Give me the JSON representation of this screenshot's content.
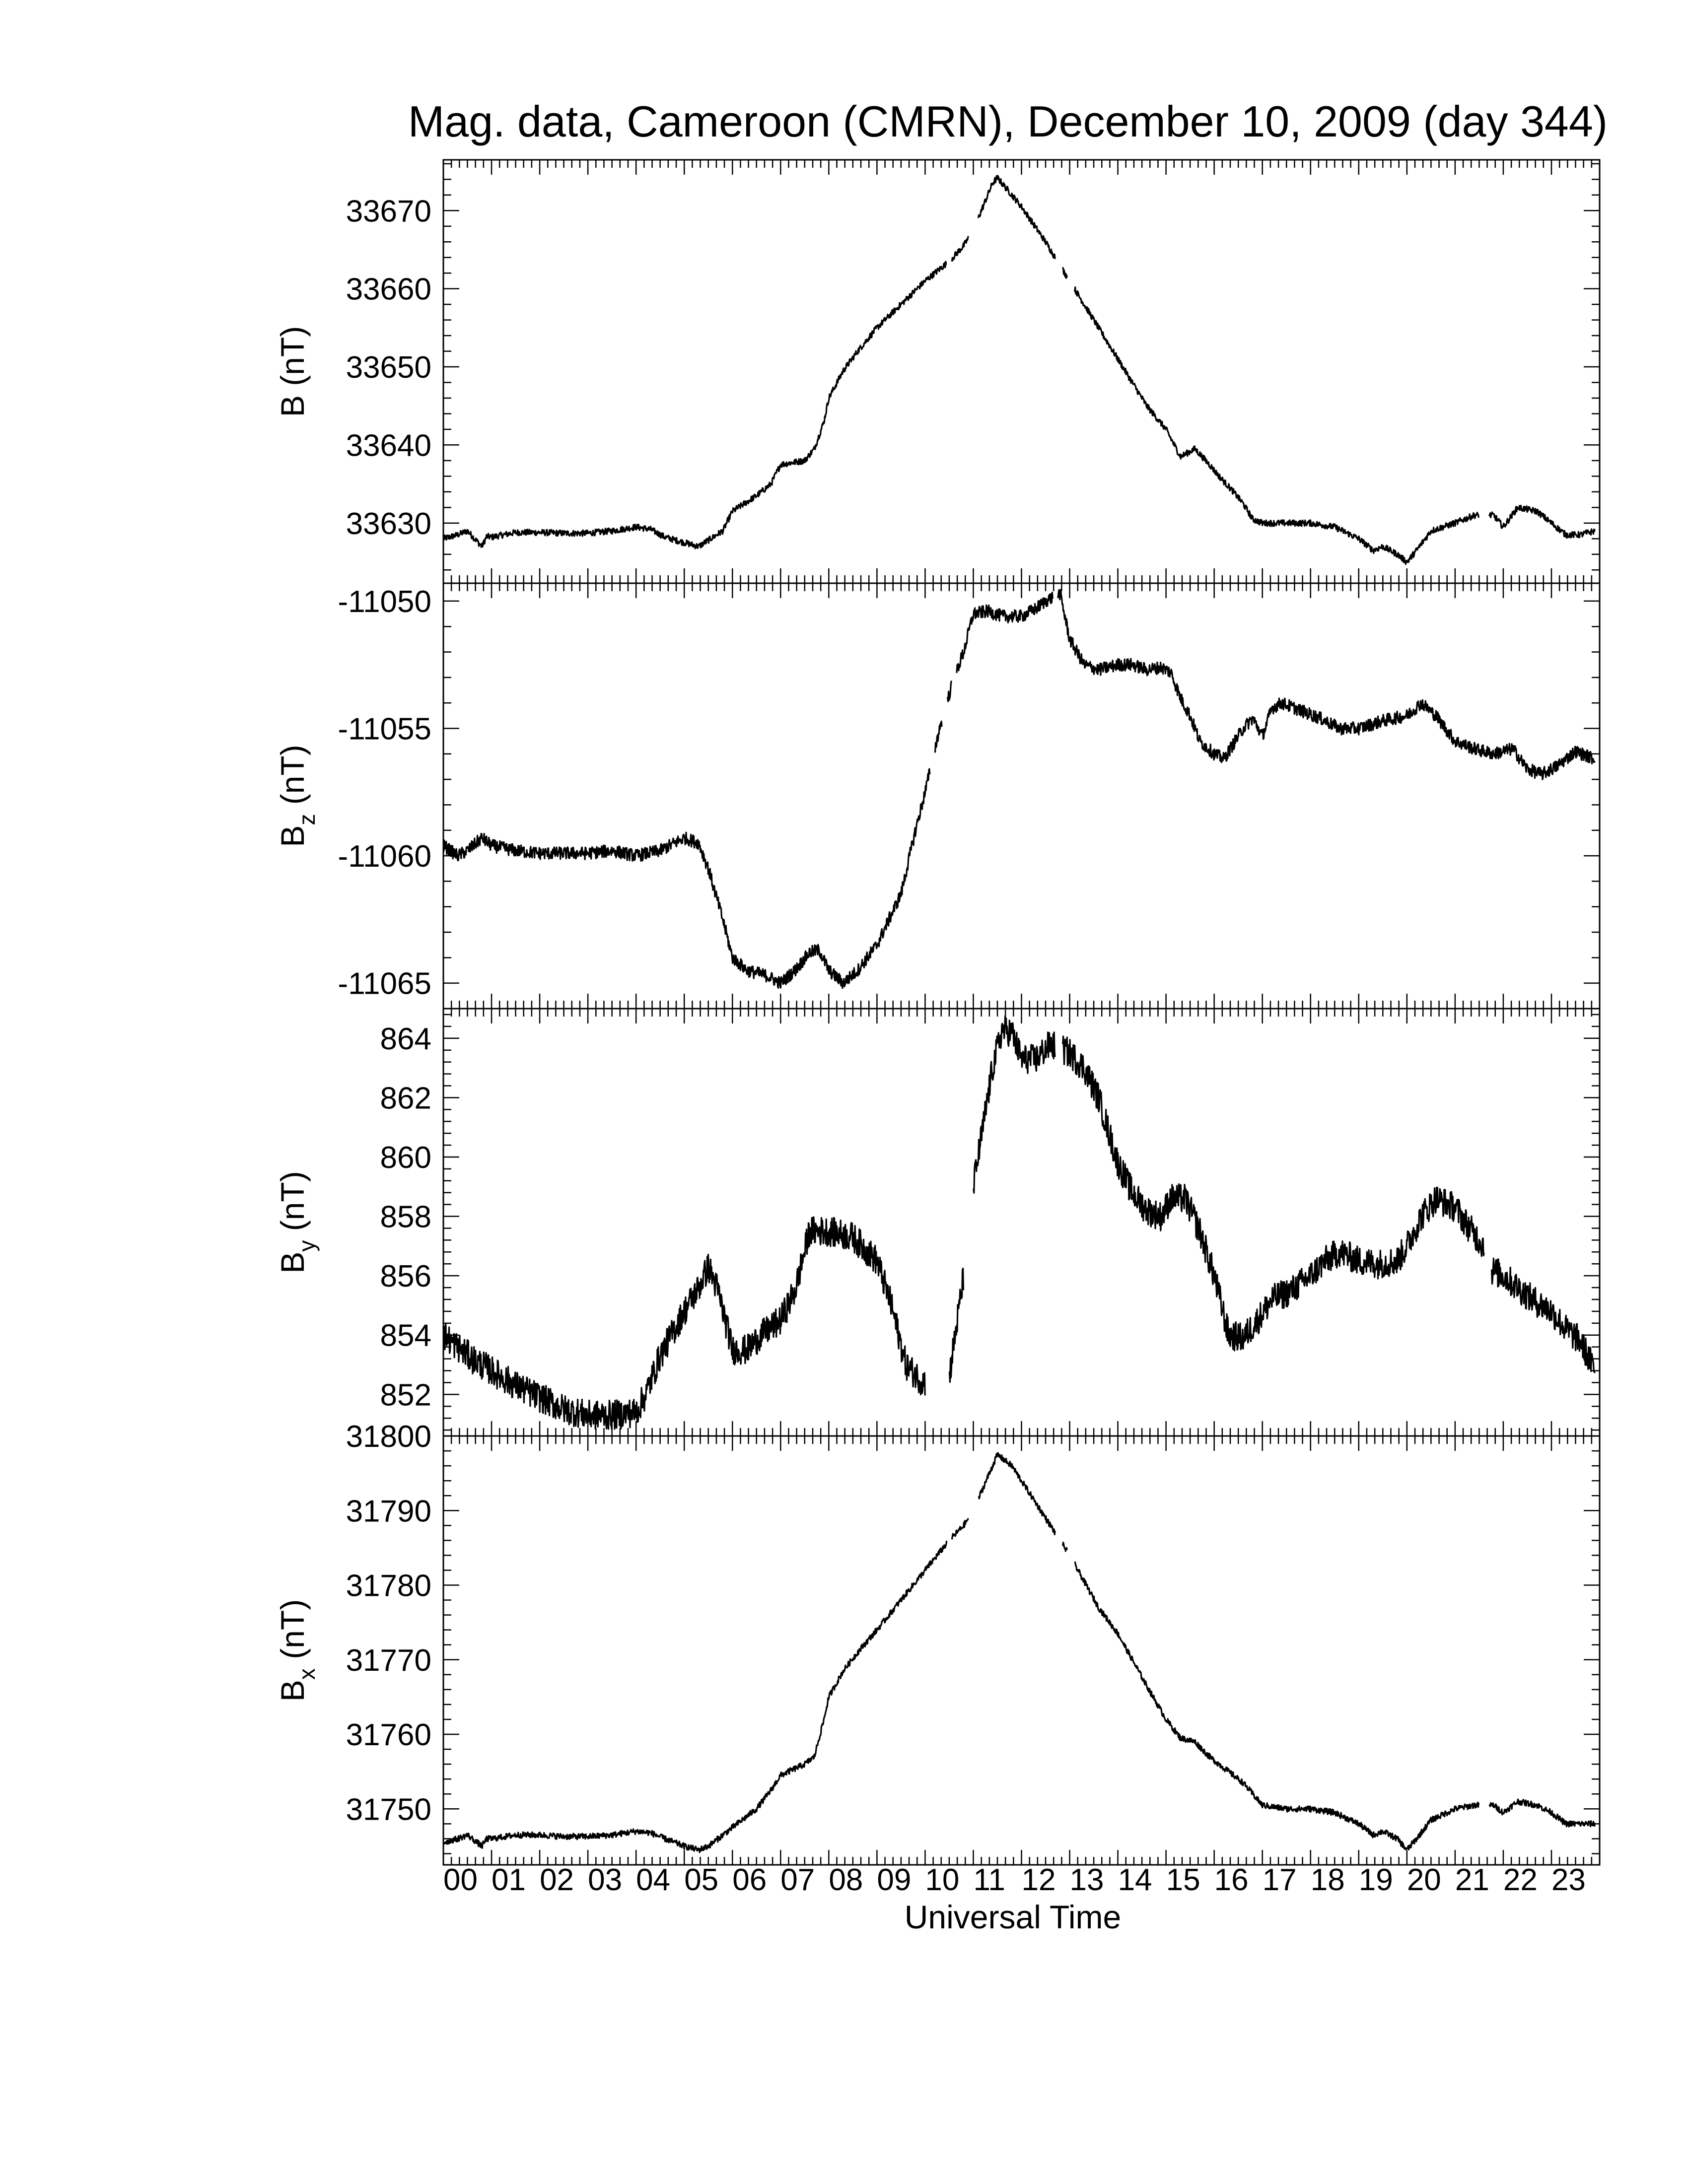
{
  "chart_data": {
    "type": "line",
    "title": "Mag. data, Cameroon (CMRN), December 10, 2009 (day 344)",
    "xlabel": "Universal Time",
    "x_tick_labels": [
      "00",
      "01",
      "02",
      "03",
      "04",
      "05",
      "06",
      "07",
      "08",
      "09",
      "10",
      "11",
      "12",
      "13",
      "14",
      "15",
      "16",
      "17",
      "18",
      "19",
      "20",
      "21",
      "22",
      "23"
    ],
    "xlim": [
      0,
      24
    ],
    "x_units": "hours UT",
    "line_color": "#000000",
    "panels": [
      {
        "ylabel_main": "B",
        "ylabel_sub": "",
        "ylabel_units": " (nT)",
        "ylim": [
          33622.3,
          33676.5
        ],
        "yticks": [
          33630,
          33640,
          33650,
          33660,
          33670
        ],
        "gaps": [
          [
            10.45,
            10.55
          ],
          [
            10.9,
            11.1
          ],
          [
            12.7,
            12.85
          ],
          [
            12.95,
            13.1
          ],
          [
            21.5,
            21.7
          ]
        ],
        "series": [
          {
            "x": [
              0.0,
              0.3,
              0.5,
              0.8,
              0.9,
              1.0,
              1.5,
              2.0,
              2.5,
              3.0,
              3.5,
              4.0,
              4.3,
              4.6,
              5.0,
              5.3,
              5.5,
              5.8,
              6.0,
              6.5,
              6.8,
              7.0,
              7.5,
              7.7,
              7.9,
              8.0,
              8.3,
              8.6,
              9.0,
              9.5,
              10.0,
              10.5,
              10.8,
              11.0,
              11.2,
              11.4,
              11.5,
              11.8,
              12.0,
              12.5,
              13.0,
              13.3,
              13.6,
              14.0,
              14.3,
              14.6,
              15.0,
              15.3,
              15.6,
              15.9,
              16.1,
              16.4,
              16.6,
              16.8,
              17.0,
              17.5,
              18.0,
              18.5,
              19.0,
              19.3,
              19.5,
              19.8,
              20.0,
              20.2,
              20.5,
              21.0,
              21.4,
              21.8,
              22.0,
              22.3,
              22.7,
              23.0,
              23.3,
              23.6,
              23.9
            ],
            "y": [
              33628.0,
              33628.5,
              33629.0,
              33627.0,
              33628.3,
              33628.2,
              33628.8,
              33628.8,
              33628.7,
              33628.7,
              33629.0,
              33629.5,
              33629.2,
              33628.2,
              33627.5,
              33627.0,
              33627.8,
              33629.0,
              33631.5,
              33633.5,
              33635.0,
              33637.5,
              33638.0,
              33639.5,
              33643.0,
              33646.0,
              33649.5,
              33652.0,
              33655.0,
              33658.0,
              33661.0,
              33663.5,
              33665.5,
              33667.5,
              33670.5,
              33673.5,
              33674.2,
              33672.0,
              33670.5,
              33666.0,
              33661.0,
              33658.0,
              33655.0,
              33651.0,
              33648.0,
              33645.0,
              33642.0,
              33638.5,
              33639.5,
              33637.5,
              33636.0,
              33634.0,
              33632.5,
              33630.5,
              33630.0,
              33630.0,
              33630.0,
              33629.5,
              33628.0,
              33626.5,
              33627.0,
              33626.0,
              33625.0,
              33626.5,
              33629.0,
              33630.0,
              33631.0,
              33631.0,
              33629.5,
              33632.0,
              33631.5,
              33630.0,
              33628.5,
              33628.5,
              33629.0
            ],
            "noise_amplitude": 0.4
          }
        ]
      },
      {
        "ylabel_main": "B",
        "ylabel_sub": "z",
        "ylabel_units": " (nT)",
        "ylim": [
          -11066.0,
          -11049.3
        ],
        "yticks": [
          -11050,
          -11055,
          -11060,
          -11065
        ],
        "gaps": [
          [
            10.1,
            10.2
          ],
          [
            10.35,
            10.45
          ],
          [
            10.55,
            10.65
          ],
          [
            12.65,
            12.75
          ]
        ],
        "series": [
          {
            "x": [
              0.0,
              0.3,
              0.5,
              0.8,
              1.0,
              1.5,
              2.0,
              2.5,
              3.0,
              3.5,
              4.0,
              4.5,
              5.0,
              5.3,
              5.5,
              5.8,
              6.0,
              6.3,
              6.7,
              7.0,
              7.3,
              7.6,
              7.8,
              8.0,
              8.3,
              8.6,
              9.0,
              9.5,
              9.8,
              10.0,
              10.3,
              10.6,
              10.8,
              11.0,
              11.3,
              11.6,
              12.0,
              12.3,
              12.5,
              12.8,
              13.0,
              13.3,
              13.6,
              14.0,
              14.3,
              14.6,
              14.9,
              15.1,
              15.3,
              15.5,
              15.7,
              16.0,
              16.2,
              16.4,
              16.6,
              16.8,
              17.0,
              17.2,
              17.4,
              17.8,
              18.2,
              18.6,
              19.0,
              19.5,
              20.0,
              20.3,
              20.6,
              21.0,
              21.4,
              21.8,
              22.2,
              22.5,
              22.8,
              23.1,
              23.5,
              23.9
            ],
            "y": [
              -11059.6,
              -11060.0,
              -11059.8,
              -11059.3,
              -11059.6,
              -11059.8,
              -11059.9,
              -11059.9,
              -11059.9,
              -11059.8,
              -11060.0,
              -11059.8,
              -11059.3,
              -11059.5,
              -11060.5,
              -11062.5,
              -11064.0,
              -11064.5,
              -11064.7,
              -11065.0,
              -11064.5,
              -11063.8,
              -11063.7,
              -11064.5,
              -11065.0,
              -11064.5,
              -11063.5,
              -11061.5,
              -11059.0,
              -11057.5,
              -11055.0,
              -11053.0,
              -11052.0,
              -11050.5,
              -11050.4,
              -11050.6,
              -11050.6,
              -11050.3,
              -11050.0,
              -11049.7,
              -11051.5,
              -11052.5,
              -11052.7,
              -11052.5,
              -11052.5,
              -11052.7,
              -11052.6,
              -11052.8,
              -11053.8,
              -11054.5,
              -11055.5,
              -11056.0,
              -11056.2,
              -11055.6,
              -11055.0,
              -11054.6,
              -11055.3,
              -11054.2,
              -11054.0,
              -11054.3,
              -11054.6,
              -11055.0,
              -11055.0,
              -11054.7,
              -11054.5,
              -11054.0,
              -11054.5,
              -11055.5,
              -11055.8,
              -11056.0,
              -11055.8,
              -11056.6,
              -11056.8,
              -11056.5,
              -11055.9,
              -11056.2
            ],
            "noise_amplitude": 0.25
          }
        ]
      },
      {
        "ylabel_main": "B",
        "ylabel_sub": "y",
        "ylabel_units": " (nT)",
        "ylim": [
          850.6,
          865.0
        ],
        "yticks": [
          852,
          854,
          856,
          858,
          860,
          862,
          864
        ],
        "gaps": [
          [
            10.0,
            10.5
          ],
          [
            10.8,
            11.0
          ],
          [
            12.7,
            12.85
          ],
          [
            21.6,
            21.75
          ]
        ],
        "series": [
          {
            "x": [
              0.0,
              0.3,
              0.6,
              1.0,
              1.5,
              2.0,
              2.5,
              3.0,
              3.5,
              4.0,
              4.2,
              4.5,
              4.8,
              5.0,
              5.3,
              5.5,
              5.7,
              6.0,
              6.3,
              6.6,
              7.0,
              7.3,
              7.6,
              8.0,
              8.5,
              9.0,
              9.3,
              9.6,
              9.9,
              10.0,
              10.5,
              10.8,
              11.0,
              11.2,
              11.4,
              11.6,
              11.8,
              12.0,
              12.3,
              12.6,
              13.0,
              13.3,
              13.6,
              14.0,
              14.3,
              14.6,
              14.9,
              15.1,
              15.4,
              15.7,
              16.0,
              16.3,
              16.6,
              16.9,
              17.2,
              17.6,
              18.0,
              18.3,
              18.6,
              19.0,
              19.4,
              19.8,
              20.0,
              20.3,
              20.6,
              21.0,
              21.3,
              21.6,
              21.75,
              22.0,
              22.3,
              22.6,
              23.0,
              23.3,
              23.6,
              23.9
            ],
            "y": [
              854.0,
              853.6,
              853.2,
              852.8,
              852.3,
              851.9,
              851.5,
              851.3,
              851.3,
              851.4,
              852.0,
              853.3,
              854.2,
              854.8,
              855.6,
              856.3,
              855.5,
              853.5,
              853.5,
              854.0,
              854.5,
              855.5,
              857.5,
              857.5,
              857.3,
              856.5,
              855.0,
              853.0,
              852.5,
              852.4,
              852.6,
              856.0,
              859.0,
              861.0,
              863.0,
              864.3,
              864.2,
              863.3,
              863.3,
              863.8,
              863.5,
              863.0,
              862.0,
              859.8,
              858.8,
              858.2,
              858.0,
              858.6,
              858.6,
              857.5,
              856.0,
              854.0,
              853.9,
              854.5,
              855.2,
              855.5,
              856.0,
              856.5,
              856.8,
              856.5,
              856.4,
              856.5,
              857.0,
              858.0,
              858.6,
              858.3,
              857.6,
              857.0,
              856.2,
              856.0,
              855.6,
              855.2,
              854.8,
              854.2,
              853.8,
              852.8
            ],
            "noise_amplitude": 0.5
          }
        ]
      },
      {
        "ylabel_main": "B",
        "ylabel_sub": "x",
        "ylabel_units": " (nT)",
        "ylim": [
          31742.5,
          31800.0
        ],
        "yticks": [
          31750,
          31760,
          31770,
          31780,
          31790,
          31800
        ],
        "gaps": [
          [
            10.45,
            10.55
          ],
          [
            10.9,
            11.1
          ],
          [
            12.7,
            12.85
          ],
          [
            12.95,
            13.1
          ],
          [
            21.5,
            21.7
          ]
        ],
        "series": [
          {
            "x": [
              0.0,
              0.3,
              0.5,
              0.8,
              0.9,
              1.0,
              1.5,
              2.0,
              2.5,
              3.0,
              3.5,
              4.0,
              4.3,
              4.6,
              5.0,
              5.3,
              5.5,
              5.8,
              6.0,
              6.5,
              6.8,
              7.0,
              7.5,
              7.7,
              7.9,
              8.0,
              8.3,
              8.6,
              9.0,
              9.5,
              10.0,
              10.5,
              10.8,
              11.0,
              11.2,
              11.4,
              11.5,
              11.8,
              12.0,
              12.5,
              13.0,
              13.3,
              13.6,
              14.0,
              14.3,
              14.6,
              15.0,
              15.3,
              15.6,
              15.9,
              16.1,
              16.4,
              16.6,
              16.8,
              17.0,
              17.5,
              18.0,
              18.5,
              19.0,
              19.3,
              19.5,
              19.8,
              20.0,
              20.2,
              20.5,
              21.0,
              21.4,
              21.8,
              22.0,
              22.3,
              22.7,
              23.0,
              23.3,
              23.6,
              23.9
            ],
            "y": [
              31745.5,
              31746.0,
              31746.5,
              31745.0,
              31746.0,
              31746.0,
              31746.5,
              31746.5,
              31746.3,
              31746.3,
              31746.5,
              31747.0,
              31746.8,
              31746.0,
              31745.0,
              31744.5,
              31745.0,
              31746.5,
              31747.5,
              31750.0,
              31752.5,
              31754.5,
              31756.0,
              31757.0,
              31762.0,
              31765.0,
              31768.5,
              31771.0,
              31774.0,
              31778.0,
              31782.0,
              31786.0,
              31788.0,
              31790.0,
              31793.0,
              31796.0,
              31797.5,
              31796.0,
              31794.0,
              31789.0,
              31784.0,
              31780.5,
              31777.0,
              31773.5,
              31770.0,
              31766.5,
              31762.0,
              31759.5,
              31759.0,
              31757.0,
              31756.0,
              31754.5,
              31753.5,
              31752.0,
              31750.5,
              31750.0,
              31750.0,
              31749.5,
              31748.0,
              31746.5,
              31747.0,
              31746.0,
              31744.5,
              31746.0,
              31748.5,
              31750.0,
              31750.5,
              31750.5,
              31749.5,
              31751.0,
              31750.5,
              31749.5,
              31748.0,
              31748.0,
              31748.0
            ],
            "noise_amplitude": 0.4
          }
        ]
      }
    ]
  }
}
